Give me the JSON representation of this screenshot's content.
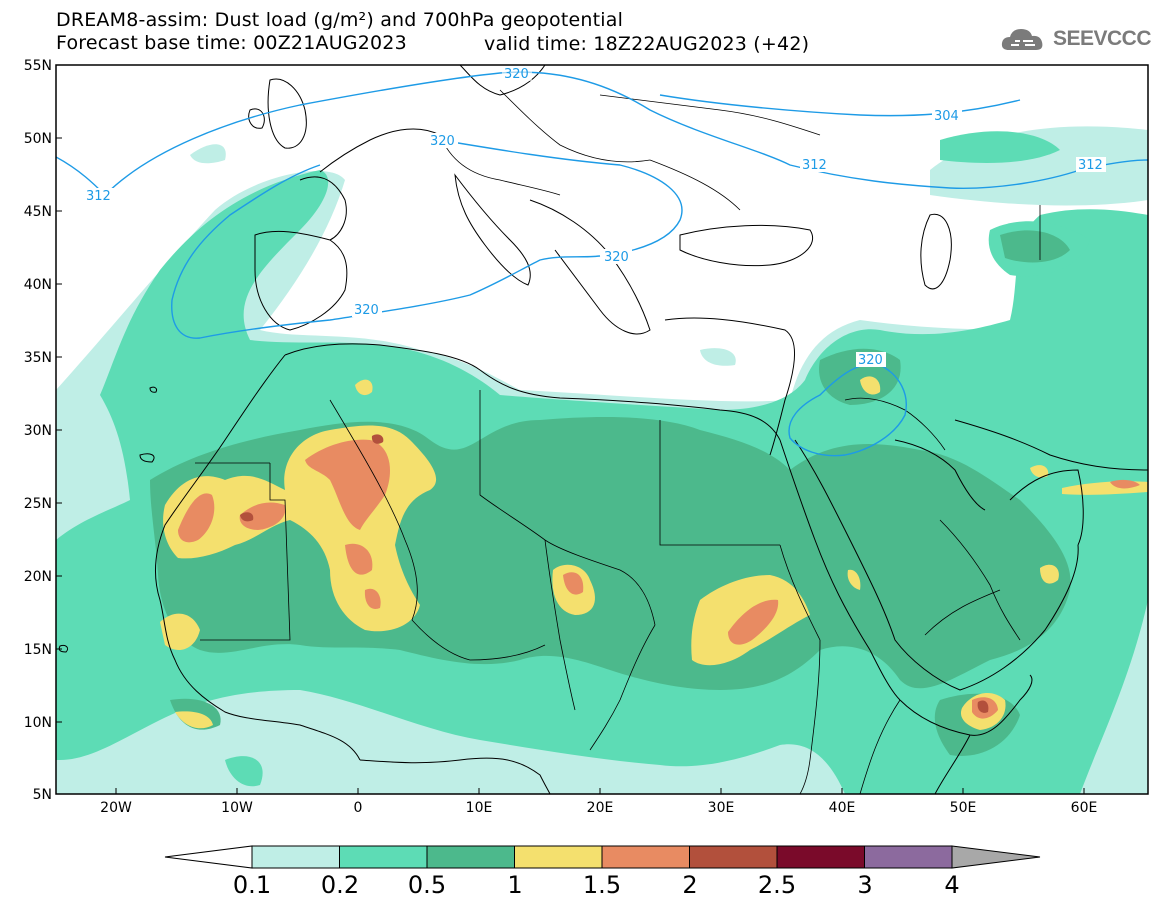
{
  "header": {
    "title_line1": "DREAM8-assim: Dust load (g/m²) and 700hPa geopotential",
    "title_line2": "Forecast base time: 00Z21AUG2023",
    "valid_time": "valid time: 18Z22AUG2023 (+42)"
  },
  "logo": {
    "text": "SEEVCCC",
    "icon": "cloud-icon"
  },
  "axes": {
    "lat_labels": [
      "55N",
      "50N",
      "45N",
      "40N",
      "35N",
      "30N",
      "25N",
      "20N",
      "15N",
      "10N",
      "5N"
    ],
    "lon_labels": [
      "20W",
      "10W",
      "0",
      "10E",
      "20E",
      "30E",
      "40E",
      "50E",
      "60E"
    ]
  },
  "contours": {
    "labels": [
      "312",
      "320",
      "320",
      "320",
      "320",
      "320",
      "304",
      "312",
      "312"
    ]
  },
  "colorbar": {
    "labels": [
      "0.1",
      "0.2",
      "0.5",
      "1",
      "1.5",
      "2",
      "2.5",
      "3",
      "4"
    ],
    "colors": [
      "#bfeee6",
      "#5ddcb5",
      "#4cb98c",
      "#f4e06e",
      "#e88b62",
      "#b2503c",
      "#7a0a2a",
      "#8c6a9e",
      "#a8a8a8"
    ]
  },
  "colors": {
    "contour": "#1e9be6",
    "border": "#000000",
    "level1": "#bfeee6",
    "level2": "#5ddcb5",
    "level3": "#4cb98c",
    "level4": "#f4e06e",
    "level5": "#e88b62",
    "level6": "#b2503c"
  }
}
